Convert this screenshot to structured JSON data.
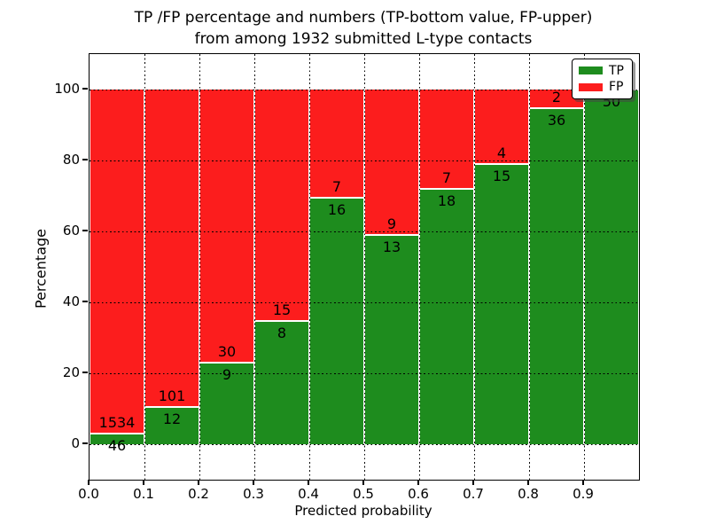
{
  "title": {
    "line1": "TP /FP percentage and numbers (TP-bottom value, FP-upper)",
    "line2": "from among 1932 submitted L-type contacts"
  },
  "axes": {
    "xlabel": "Predicted probability",
    "ylabel": "Percentage",
    "xtick_labels": [
      "0.0",
      "0.1",
      "0.2",
      "0.3",
      "0.4",
      "0.5",
      "0.6",
      "0.7",
      "0.8",
      "0.9"
    ],
    "ytick_labels": [
      "0",
      "20",
      "40",
      "60",
      "80",
      "100"
    ],
    "ytick_values": [
      0,
      20,
      40,
      60,
      80,
      100
    ]
  },
  "legend": {
    "items": [
      {
        "label": "TP",
        "color": "#1e8c1e"
      },
      {
        "label": "FP",
        "color": "#fc1d1d"
      }
    ]
  },
  "chart_data": {
    "type": "bar",
    "stacked": true,
    "normalized": "each bar scaled to 100%",
    "title": "TP /FP percentage and numbers (TP-bottom value, FP-upper) from among 1932 submitted L-type contacts",
    "xlabel": "Predicted probability",
    "ylabel": "Percentage",
    "xlim": [
      0.0,
      1.0
    ],
    "ylim": [
      -10,
      110
    ],
    "grid": "dotted black, x at 0.1 steps, y at 0/20/40/60/80/100",
    "legend_position": "upper right",
    "total_contacts": 1932,
    "bins": [
      "0.0-0.1",
      "0.1-0.2",
      "0.2-0.3",
      "0.3-0.4",
      "0.4-0.5",
      "0.5-0.6",
      "0.6-0.7",
      "0.7-0.8",
      "0.8-0.9",
      "0.9-1.0"
    ],
    "series": [
      {
        "name": "TP",
        "color": "#1e8c1e",
        "counts": [
          46,
          12,
          9,
          8,
          16,
          13,
          18,
          15,
          36,
          50
        ],
        "labels": [
          "46",
          "12",
          "9",
          "8",
          "16",
          "13",
          "18",
          "15",
          "36",
          "50"
        ]
      },
      {
        "name": "FP",
        "color": "#fc1d1d",
        "counts": [
          1534,
          101,
          30,
          15,
          7,
          9,
          7,
          4,
          2,
          0
        ],
        "labels": [
          "1534",
          "101",
          "30",
          "15",
          "7",
          "9",
          "7",
          "4",
          "2",
          ""
        ]
      }
    ],
    "tp_percent": [
      2.9,
      10.6,
      23.1,
      34.8,
      69.6,
      59.1,
      72.0,
      78.9,
      94.7,
      100.0
    ]
  }
}
